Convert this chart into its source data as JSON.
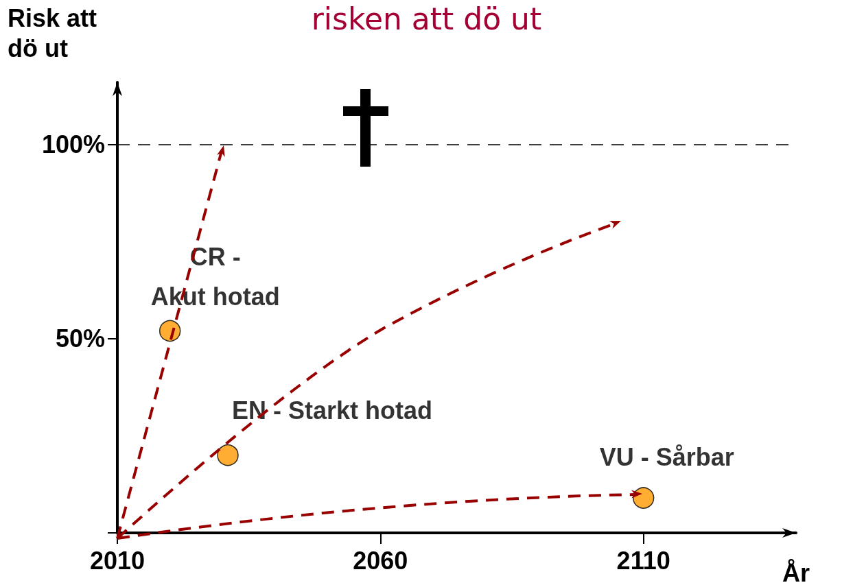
{
  "chart_data": {
    "type": "scatter",
    "title": "risken att dö ut",
    "xlabel": "År",
    "ylabel": "Risk att\ndö ut",
    "xlim": [
      2010,
      2139
    ],
    "ylim": [
      0,
      116
    ],
    "xticks": [
      2010,
      2060,
      2110
    ],
    "yticks": [
      {
        "value": 0,
        "label": null
      },
      {
        "value": 50,
        "label": "50%"
      },
      {
        "value": 100,
        "label": "100%"
      }
    ],
    "grid": false,
    "legend": false,
    "ref_lines": [
      {
        "axis": "y",
        "value": 100,
        "color": "#000000",
        "line_style": "dashed"
      }
    ],
    "series": [
      {
        "name": "CR -\nAkut hotad",
        "color": "#ff9900",
        "marker": "circle",
        "x": [
          2020
        ],
        "values": [
          52
        ]
      },
      {
        "name": "EN - Starkt hotad",
        "color": "#ff9900",
        "marker": "circle",
        "x": [
          2031
        ],
        "values": [
          20
        ]
      },
      {
        "name": "VU - Sårbar",
        "color": "#ff9900",
        "marker": "circle",
        "x": [
          2110
        ],
        "values": [
          9
        ]
      }
    ]
  }
}
